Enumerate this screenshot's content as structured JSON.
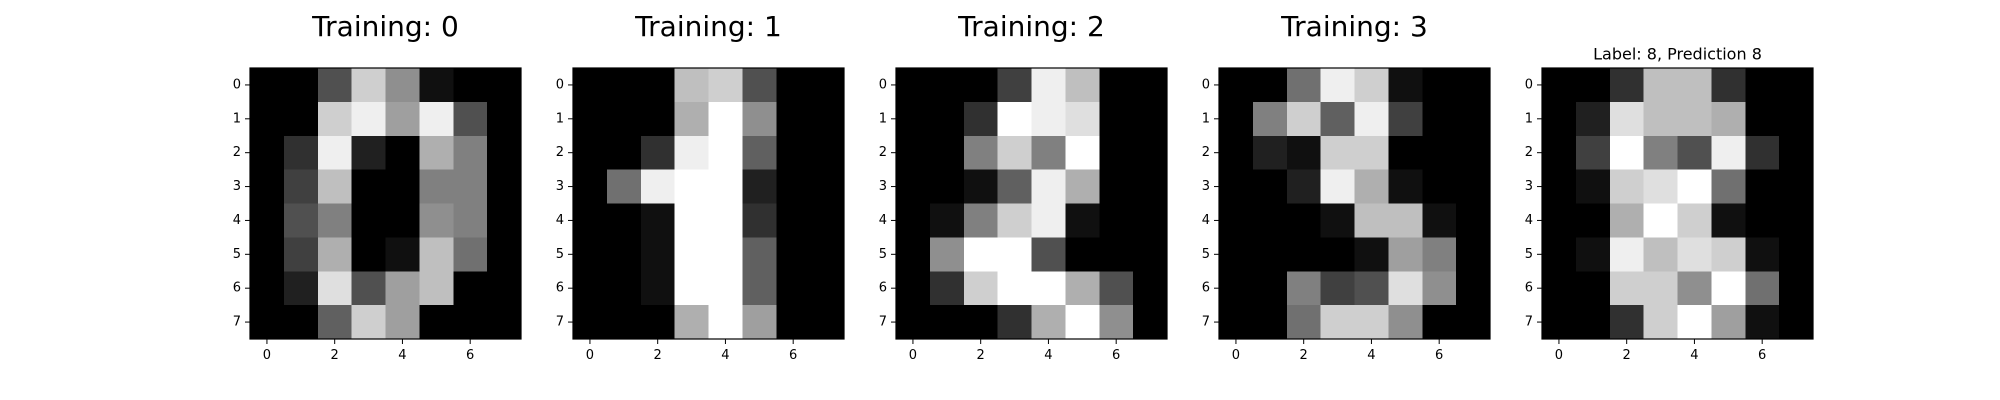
{
  "chart_data": [
    {
      "type": "heatmap",
      "title": "Training: 0",
      "title_size": "large",
      "colormap": "gray_r",
      "value_range": [
        0,
        16
      ],
      "xticks": [
        "0",
        "2",
        "4",
        "6"
      ],
      "yticks": [
        "0",
        "1",
        "2",
        "3",
        "4",
        "5",
        "6",
        "7"
      ],
      "values": [
        [
          0,
          0,
          5,
          13,
          9,
          1,
          0,
          0
        ],
        [
          0,
          0,
          13,
          15,
          10,
          15,
          5,
          0
        ],
        [
          0,
          3,
          15,
          2,
          0,
          11,
          8,
          0
        ],
        [
          0,
          4,
          12,
          0,
          0,
          8,
          8,
          0
        ],
        [
          0,
          5,
          8,
          0,
          0,
          9,
          8,
          0
        ],
        [
          0,
          4,
          11,
          0,
          1,
          12,
          7,
          0
        ],
        [
          0,
          2,
          14,
          5,
          10,
          12,
          0,
          0
        ],
        [
          0,
          0,
          6,
          13,
          10,
          0,
          0,
          0
        ]
      ]
    },
    {
      "type": "heatmap",
      "title": "Training: 1",
      "title_size": "large",
      "colormap": "gray_r",
      "value_range": [
        0,
        16
      ],
      "xticks": [
        "0",
        "2",
        "4",
        "6"
      ],
      "yticks": [
        "0",
        "1",
        "2",
        "3",
        "4",
        "5",
        "6",
        "7"
      ],
      "values": [
        [
          0,
          0,
          0,
          12,
          13,
          5,
          0,
          0
        ],
        [
          0,
          0,
          0,
          11,
          16,
          9,
          0,
          0
        ],
        [
          0,
          0,
          3,
          15,
          16,
          6,
          0,
          0
        ],
        [
          0,
          7,
          15,
          16,
          16,
          2,
          0,
          0
        ],
        [
          0,
          0,
          1,
          16,
          16,
          3,
          0,
          0
        ],
        [
          0,
          0,
          1,
          16,
          16,
          6,
          0,
          0
        ],
        [
          0,
          0,
          1,
          16,
          16,
          6,
          0,
          0
        ],
        [
          0,
          0,
          0,
          11,
          16,
          10,
          0,
          0
        ]
      ]
    },
    {
      "type": "heatmap",
      "title": "Training: 2",
      "title_size": "large",
      "colormap": "gray_r",
      "value_range": [
        0,
        16
      ],
      "xticks": [
        "0",
        "2",
        "4",
        "6"
      ],
      "yticks": [
        "0",
        "1",
        "2",
        "3",
        "4",
        "5",
        "6",
        "7"
      ],
      "values": [
        [
          0,
          0,
          0,
          4,
          15,
          12,
          0,
          0
        ],
        [
          0,
          0,
          3,
          16,
          15,
          14,
          0,
          0
        ],
        [
          0,
          0,
          8,
          13,
          8,
          16,
          0,
          0
        ],
        [
          0,
          0,
          1,
          6,
          15,
          11,
          0,
          0
        ],
        [
          0,
          1,
          8,
          13,
          15,
          1,
          0,
          0
        ],
        [
          0,
          9,
          16,
          16,
          5,
          0,
          0,
          0
        ],
        [
          0,
          3,
          13,
          16,
          16,
          11,
          5,
          0
        ],
        [
          0,
          0,
          0,
          3,
          11,
          16,
          9,
          0
        ]
      ]
    },
    {
      "type": "heatmap",
      "title": "Training: 3",
      "title_size": "large",
      "colormap": "gray_r",
      "value_range": [
        0,
        16
      ],
      "xticks": [
        "0",
        "2",
        "4",
        "6"
      ],
      "yticks": [
        "0",
        "1",
        "2",
        "3",
        "4",
        "5",
        "6",
        "7"
      ],
      "values": [
        [
          0,
          0,
          7,
          15,
          13,
          1,
          0,
          0
        ],
        [
          0,
          8,
          13,
          6,
          15,
          4,
          0,
          0
        ],
        [
          0,
          2,
          1,
          13,
          13,
          0,
          0,
          0
        ],
        [
          0,
          0,
          2,
          15,
          11,
          1,
          0,
          0
        ],
        [
          0,
          0,
          0,
          1,
          12,
          12,
          1,
          0
        ],
        [
          0,
          0,
          0,
          0,
          1,
          10,
          8,
          0
        ],
        [
          0,
          0,
          8,
          4,
          5,
          14,
          9,
          0
        ],
        [
          0,
          0,
          7,
          13,
          13,
          9,
          0,
          0
        ]
      ]
    },
    {
      "type": "heatmap",
      "title": "Label: 8, Prediction 8",
      "title_size": "small",
      "colormap": "gray_r",
      "value_range": [
        0,
        16
      ],
      "xticks": [
        "0",
        "2",
        "4",
        "6"
      ],
      "yticks": [
        "0",
        "1",
        "2",
        "3",
        "4",
        "5",
        "6",
        "7"
      ],
      "values": [
        [
          0,
          0,
          3,
          12,
          12,
          3,
          0,
          0
        ],
        [
          0,
          2,
          14,
          12,
          12,
          11,
          0,
          0
        ],
        [
          0,
          4,
          16,
          8,
          5,
          15,
          3,
          0
        ],
        [
          0,
          1,
          13,
          14,
          16,
          7,
          0,
          0
        ],
        [
          0,
          0,
          11,
          16,
          13,
          1,
          0,
          0
        ],
        [
          0,
          1,
          15,
          12,
          14,
          13,
          1,
          0
        ],
        [
          0,
          0,
          13,
          13,
          9,
          16,
          7,
          0
        ],
        [
          0,
          0,
          3,
          13,
          16,
          10,
          1,
          0
        ]
      ]
    }
  ]
}
